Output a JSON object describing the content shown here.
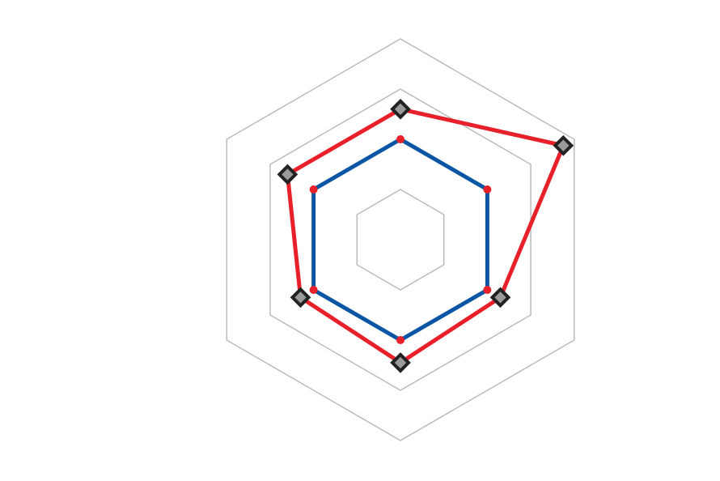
{
  "chart_data": {
    "type": "radar",
    "categories": [
      null,
      null,
      null,
      null,
      null,
      null
    ],
    "ylim": [
      0,
      4
    ],
    "yticks": [
      1,
      3,
      4
    ],
    "grid": true,
    "grid_color": "#bbbbbb",
    "series": [
      {
        "color": "#0a56a4",
        "marker": "dot",
        "marker_color": "#e8202a",
        "values": [
          2,
          2,
          2,
          2,
          2,
          2
        ]
      },
      {
        "color": "#e8202a",
        "marker": "diamond",
        "marker_color": "#9a9a9a",
        "values": [
          2.6,
          3.75,
          2.3,
          2.45,
          2.3,
          2.6
        ]
      }
    ]
  }
}
